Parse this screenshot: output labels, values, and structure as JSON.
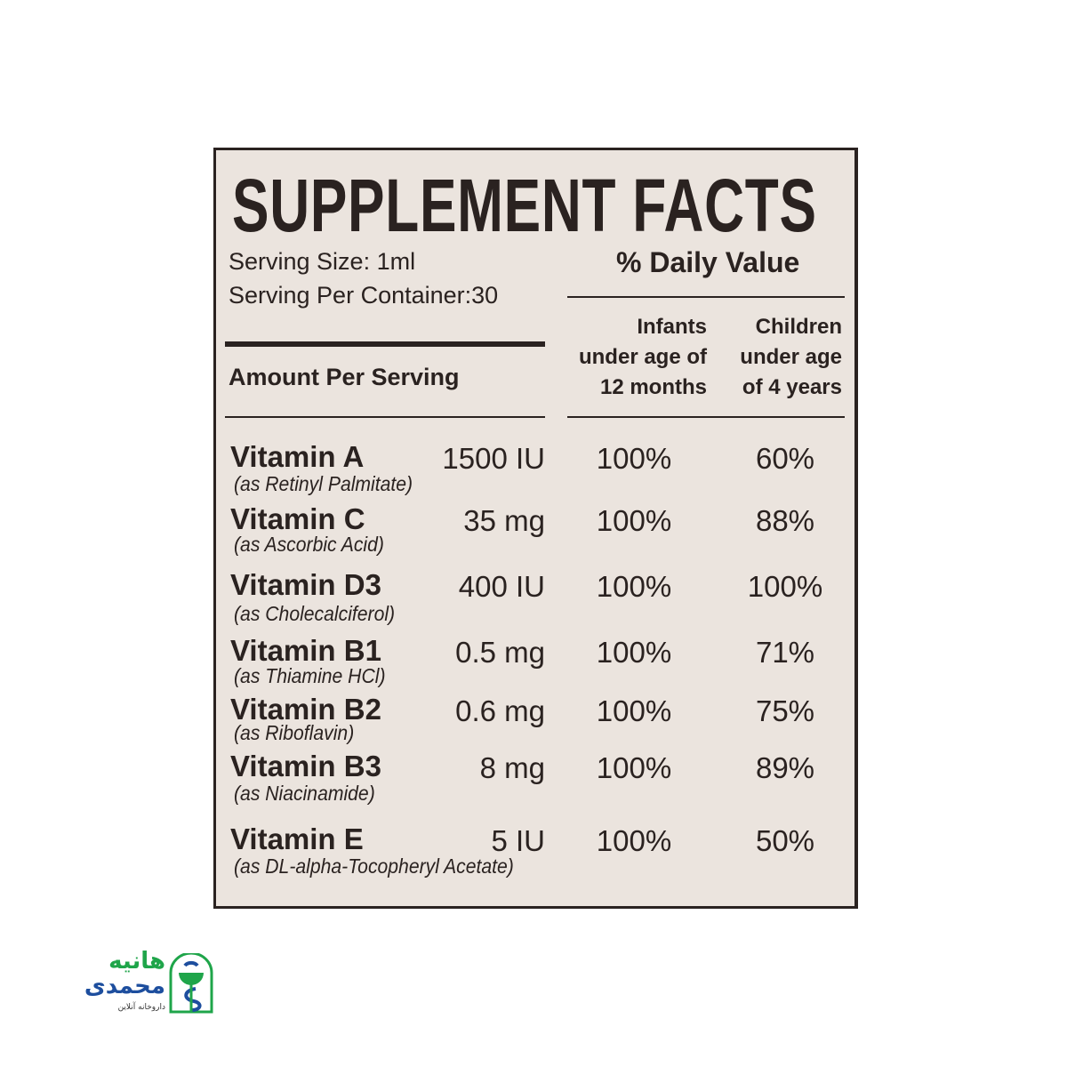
{
  "title": "SUPPLEMENT FACTS",
  "serving_size": "Serving Size: 1ml",
  "servings_per_container": "Serving Per Container:30",
  "daily_value_heading": "% Daily Value",
  "col_infants": [
    "Infants",
    "under age of",
    "12 months"
  ],
  "col_children": [
    "Children",
    "under age",
    "of 4 years"
  ],
  "amount_per_serving": "Amount Per Serving",
  "rows": [
    {
      "name": "Vitamin A",
      "source": "(as Retinyl Palmitate)",
      "amount": "1500 IU",
      "infants": "100%",
      "children": "60%"
    },
    {
      "name": "Vitamin C",
      "source": "(as Ascorbic Acid)",
      "amount": "35 mg",
      "infants": "100%",
      "children": "88%"
    },
    {
      "name": "Vitamin D3",
      "source": "(as Cholecalciferol)",
      "amount": "400 IU",
      "infants": "100%",
      "children": "100%"
    },
    {
      "name": "Vitamin B1",
      "source": "(as Thiamine HCl)",
      "amount": "0.5 mg",
      "infants": "100%",
      "children": "71%"
    },
    {
      "name": "Vitamin B2",
      "source": "(as Riboflavin)",
      "amount": "0.6 mg",
      "infants": "100%",
      "children": "75%"
    },
    {
      "name": "Vitamin B3",
      "source": "(as Niacinamide)",
      "amount": "8 mg",
      "infants": "100%",
      "children": "89%"
    },
    {
      "name": "Vitamin E",
      "source": "(as DL-alpha-Tocopheryl Acetate)",
      "amount": "5 IU",
      "infants": "100%",
      "children": "50%"
    }
  ],
  "logo": {
    "line1": "هانیه",
    "line2": "محمدی",
    "tagline": "داروخانه آنلاین",
    "green": "#1fa54a",
    "blue": "#1d4e9e"
  },
  "colors": {
    "label_bg": "#ebe4de",
    "ink": "#2a2220"
  }
}
